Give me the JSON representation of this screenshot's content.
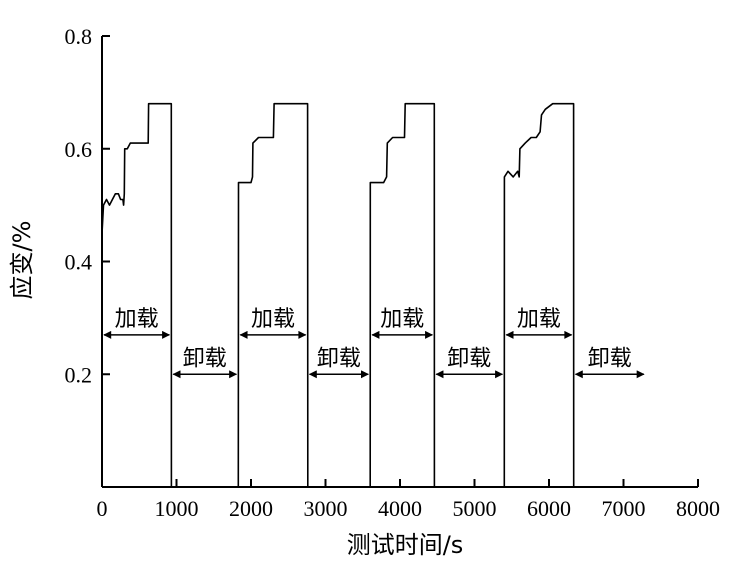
{
  "chart_data": {
    "type": "line",
    "title": "",
    "xlabel": "测试时间/s",
    "ylabel": "应变/%",
    "xlim": [
      0,
      8000
    ],
    "ylim": [
      0,
      0.8
    ],
    "xticks": [
      "0",
      "1000",
      "2000",
      "3000",
      "4000",
      "5000",
      "6000",
      "7000",
      "8000"
    ],
    "yticks": [
      "0.2",
      "0.4",
      "0.6",
      "0.8"
    ],
    "grid": false,
    "series": [
      {
        "values": [
          [
            0,
            0.45
          ],
          [
            20,
            0.5
          ],
          [
            60,
            0.51
          ],
          [
            100,
            0.5
          ],
          [
            140,
            0.51
          ],
          [
            180,
            0.52
          ],
          [
            220,
            0.52
          ],
          [
            250,
            0.51
          ],
          [
            270,
            0.51
          ],
          [
            280,
            0.51
          ],
          [
            290,
            0.5
          ],
          [
            300,
            0.52
          ],
          [
            305,
            0.6
          ],
          [
            340,
            0.6
          ],
          [
            380,
            0.61
          ],
          [
            450,
            0.61
          ],
          [
            520,
            0.61
          ],
          [
            600,
            0.61
          ],
          [
            620,
            0.61
          ],
          [
            625,
            0.68
          ],
          [
            700,
            0.68
          ],
          [
            800,
            0.68
          ],
          [
            880,
            0.68
          ],
          [
            930,
            0.68
          ],
          [
            932,
            0.0
          ]
        ]
      },
      {
        "values": [
          [
            1830,
            0.0
          ],
          [
            1832,
            0.54
          ],
          [
            1900,
            0.54
          ],
          [
            1960,
            0.54
          ],
          [
            2000,
            0.54
          ],
          [
            2020,
            0.55
          ],
          [
            2025,
            0.61
          ],
          [
            2100,
            0.62
          ],
          [
            2200,
            0.62
          ],
          [
            2300,
            0.62
          ],
          [
            2310,
            0.68
          ],
          [
            2400,
            0.68
          ],
          [
            2500,
            0.68
          ],
          [
            2650,
            0.68
          ],
          [
            2760,
            0.68
          ],
          [
            2762,
            0.0
          ]
        ]
      },
      {
        "values": [
          [
            3600,
            0.0
          ],
          [
            3602,
            0.54
          ],
          [
            3650,
            0.54
          ],
          [
            3720,
            0.54
          ],
          [
            3780,
            0.54
          ],
          [
            3820,
            0.55
          ],
          [
            3830,
            0.61
          ],
          [
            3900,
            0.62
          ],
          [
            3980,
            0.62
          ],
          [
            4060,
            0.62
          ],
          [
            4070,
            0.68
          ],
          [
            4150,
            0.68
          ],
          [
            4250,
            0.68
          ],
          [
            4350,
            0.68
          ],
          [
            4460,
            0.68
          ],
          [
            4462,
            0.0
          ]
        ]
      },
      {
        "values": [
          [
            5400,
            0.0
          ],
          [
            5402,
            0.55
          ],
          [
            5450,
            0.56
          ],
          [
            5520,
            0.55
          ],
          [
            5580,
            0.56
          ],
          [
            5600,
            0.55
          ],
          [
            5610,
            0.6
          ],
          [
            5680,
            0.61
          ],
          [
            5760,
            0.62
          ],
          [
            5830,
            0.62
          ],
          [
            5880,
            0.63
          ],
          [
            5900,
            0.66
          ],
          [
            5950,
            0.67
          ],
          [
            6050,
            0.68
          ],
          [
            6200,
            0.68
          ],
          [
            6330,
            0.68
          ],
          [
            6332,
            0.0
          ]
        ]
      }
    ],
    "annotations": [
      {
        "text": "加载",
        "y": 0.3,
        "x_start": 0,
        "x_end": 930
      },
      {
        "text": "卸载",
        "y": 0.2,
        "x_start": 930,
        "x_end": 1830
      },
      {
        "text": "加载",
        "y": 0.3,
        "x_start": 1830,
        "x_end": 2760
      },
      {
        "text": "卸载",
        "y": 0.2,
        "x_start": 2760,
        "x_end": 3600
      },
      {
        "text": "加载",
        "y": 0.3,
        "x_start": 3600,
        "x_end": 4460
      },
      {
        "text": "卸载",
        "y": 0.2,
        "x_start": 4460,
        "x_end": 5400
      },
      {
        "text": "加载",
        "y": 0.3,
        "x_start": 5400,
        "x_end": 6330
      },
      {
        "text": "卸载",
        "y": 0.2,
        "x_start": 6330,
        "x_end": 7300
      }
    ]
  }
}
